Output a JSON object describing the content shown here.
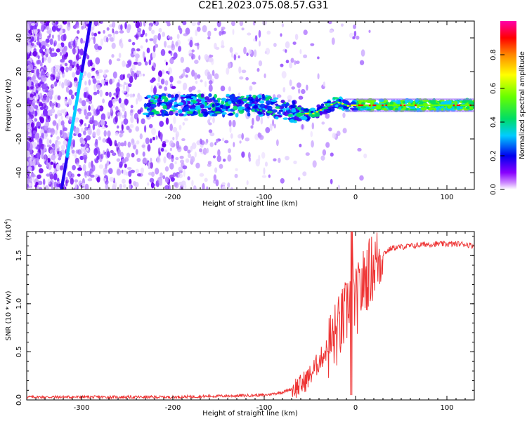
{
  "title": "C2E1.2023.075.08.57.G31",
  "colors": {
    "snr_line": "#ee3333",
    "colorbar": [
      "#ffffff",
      "#cc88ff",
      "#6600ff",
      "#0000ee",
      "#00ccff",
      "#00dd66",
      "#66ff00",
      "#ffff00",
      "#ff8800",
      "#ff0000",
      "#ff00aa"
    ]
  },
  "chart_data": [
    {
      "type": "heatmap",
      "title": "C2E1.2023.075.08.57.G31",
      "xlabel": "Height of straight line (km)",
      "ylabel": "Frequency (Hz)",
      "xlim": [
        -360,
        130
      ],
      "ylim": [
        -50,
        50
      ],
      "x_ticks": [
        -300,
        -200,
        -100,
        0,
        100
      ],
      "y_ticks": [
        -40,
        -20,
        0,
        20,
        40
      ],
      "colorbar": {
        "label": "Normalized spectral amplitude",
        "range": [
          0,
          1
        ],
        "ticks": [
          "0.0",
          "0.2",
          "0.4",
          "0.6",
          "0.8"
        ]
      },
      "features": [
        {
          "name": "diagonal streak",
          "x": [
            -320,
            -290
          ],
          "y": [
            -50,
            50
          ]
        },
        {
          "name": "main band",
          "x": [
            -230,
            130
          ],
          "center_freq": 0
        }
      ]
    },
    {
      "type": "line",
      "xlabel": "Height of straight line (km)",
      "ylabel": "SNR (10 * v/v)",
      "y_multiplier": "(x10",
      "y_multiplier_exp": "4",
      "xlim": [
        -360,
        130
      ],
      "ylim": [
        0,
        1.75
      ],
      "x_ticks": [
        -300,
        -200,
        -100,
        0,
        100
      ],
      "y_ticks": [
        "0.0",
        "0.5",
        "1.0",
        "1.5"
      ],
      "series": [
        {
          "x": [
            -360,
            -300,
            -200,
            -150,
            -100,
            -80,
            -60,
            -50,
            -40,
            -30,
            -20,
            -10,
            -5,
            0,
            10,
            20,
            30,
            40,
            60,
            80,
            100,
            120,
            130
          ],
          "y": [
            0.03,
            0.03,
            0.03,
            0.04,
            0.05,
            0.08,
            0.15,
            0.25,
            0.4,
            0.55,
            0.7,
            0.9,
            1.2,
            1.0,
            1.25,
            1.4,
            1.52,
            1.58,
            1.6,
            1.62,
            1.62,
            1.62,
            1.6
          ]
        }
      ]
    }
  ]
}
